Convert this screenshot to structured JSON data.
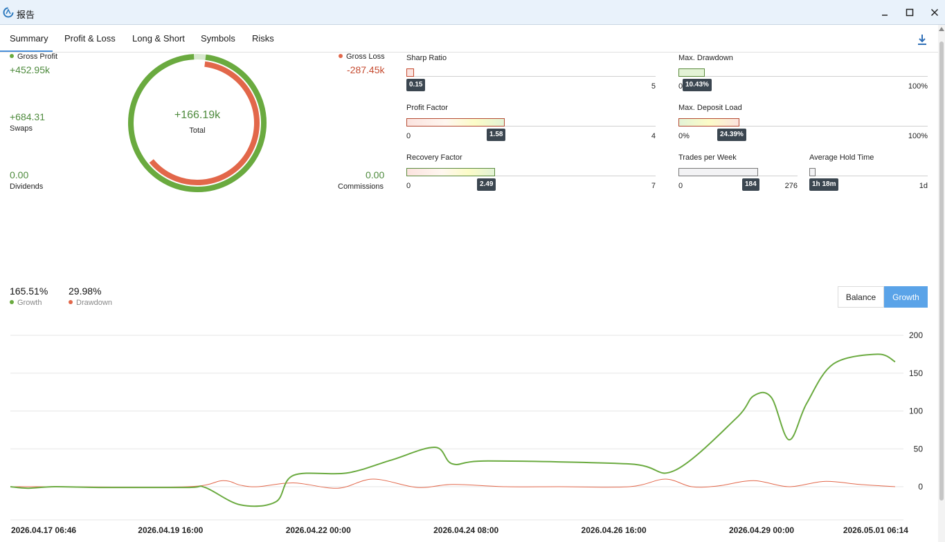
{
  "window": {
    "title": "报告"
  },
  "tabs": [
    "Summary",
    "Profit & Loss",
    "Long & Short",
    "Symbols",
    "Risks"
  ],
  "summary": {
    "gross_profit_label": "Gross Profit",
    "gross_profit_value": "+452.95k",
    "gross_loss_label": "Gross Loss",
    "gross_loss_value": "-287.45k",
    "swaps_value": "+684.31",
    "swaps_label": "Swaps",
    "dividends_value": "0.00",
    "dividends_label": "Dividends",
    "commissions_value": "0.00",
    "commissions_label": "Commissions",
    "total_value": "+166.19k",
    "total_label": "Total",
    "profit_ratio": 0.9,
    "loss_ratio": 0.62
  },
  "meters": [
    {
      "label": "Sharp Ratio",
      "min": "0",
      "max": "5",
      "tip": "0.15",
      "fraction": 0.03
    },
    {
      "label": "Profit Factor",
      "min": "0",
      "max": "4",
      "tip": "1.58",
      "fraction": 0.395
    },
    {
      "label": "Recovery Factor",
      "min": "0",
      "max": "7",
      "tip": "2.49",
      "fraction": 0.356
    },
    {
      "label": "Max. Drawdown",
      "min": "0%",
      "max": "100%",
      "tip": "10.43%",
      "fraction": 0.1043
    },
    {
      "label": "Max. Deposit Load",
      "min": "0%",
      "max": "100%",
      "tip": "24.39%",
      "fraction": 0.2439
    },
    {
      "label": "Trades per Week",
      "min": "0",
      "max": "276",
      "tip": "184",
      "fraction": 0.667
    },
    {
      "label": "Average Hold Time",
      "min": "",
      "max": "1d",
      "tip": "1h 18m",
      "fraction": 0.054
    }
  ],
  "growth_stats": {
    "growth_value": "165.51%",
    "growth_label": "Growth",
    "drawdown_value": "29.98%",
    "drawdown_label": "Drawdown"
  },
  "toggle": {
    "balance": "Balance",
    "growth": "Growth",
    "selected": "Growth"
  },
  "colors": {
    "green": "#6aaa3f",
    "red": "#e2674a",
    "accent": "#5aa3e8"
  },
  "chart_data": {
    "type": "line",
    "ylim": [
      -45,
      200
    ],
    "yticks": [
      "200",
      "150",
      "100",
      "50",
      "0"
    ],
    "xticks": [
      "2026.04.17 06:46",
      "2026.04.19 16:00",
      "2026.04.22 00:00",
      "2026.04.24 08:00",
      "2026.04.26 16:00",
      "2026.04.29 00:00",
      "2026.05.01 06:14"
    ],
    "series": [
      {
        "name": "Growth",
        "color": "#6aaa3f",
        "x": [
          0,
          0.02,
          0.05,
          0.1,
          0.2,
          0.22,
          0.26,
          0.3,
          0.32,
          0.38,
          0.43,
          0.48,
          0.5,
          0.54,
          0.7,
          0.75,
          0.82,
          0.84,
          0.86,
          0.88,
          0.9,
          0.93,
          0.98,
          1.0
        ],
        "y": [
          0,
          -2,
          0,
          -1,
          -1,
          -1,
          -24,
          -20,
          15,
          18,
          35,
          52,
          30,
          34,
          30,
          21,
          90,
          120,
          118,
          62,
          110,
          162,
          175,
          165
        ]
      },
      {
        "name": "Drawdown",
        "color": "#e2674a",
        "x": [
          0,
          0.05,
          0.2,
          0.24,
          0.26,
          0.28,
          0.32,
          0.37,
          0.41,
          0.46,
          0.5,
          0.56,
          0.62,
          0.7,
          0.74,
          0.77,
          0.8,
          0.84,
          0.88,
          0.92,
          0.96,
          1.0
        ],
        "y": [
          0,
          0,
          0,
          8,
          2,
          0,
          5,
          -2,
          10,
          -1,
          3,
          0,
          0,
          0,
          10,
          0,
          1,
          8,
          0,
          7,
          3,
          0
        ]
      }
    ]
  }
}
